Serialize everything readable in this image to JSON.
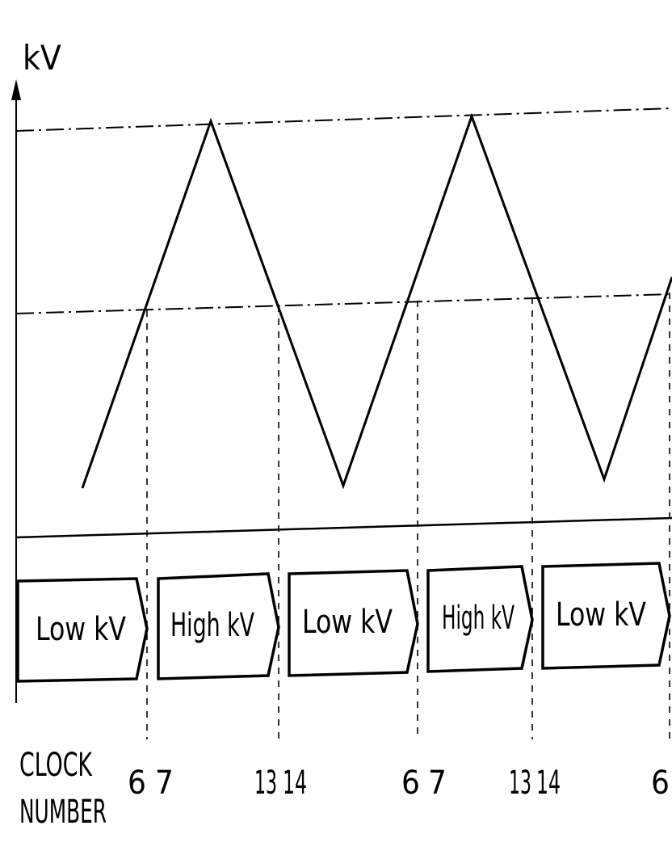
{
  "axis": {
    "y_label": "kV"
  },
  "segments": [
    {
      "label": "Low kV"
    },
    {
      "label": "High kV"
    },
    {
      "label": "Low kV"
    },
    {
      "label": "High kV"
    },
    {
      "label": "Low kV"
    }
  ],
  "clock": {
    "title_line1": "CLOCK",
    "title_line2": "NUMBER",
    "numbers": [
      "6",
      "7",
      "13",
      "14",
      "6",
      "7",
      "13",
      "14",
      "6"
    ]
  },
  "colors": {
    "ink": "#000000",
    "background": "#ffffff"
  }
}
